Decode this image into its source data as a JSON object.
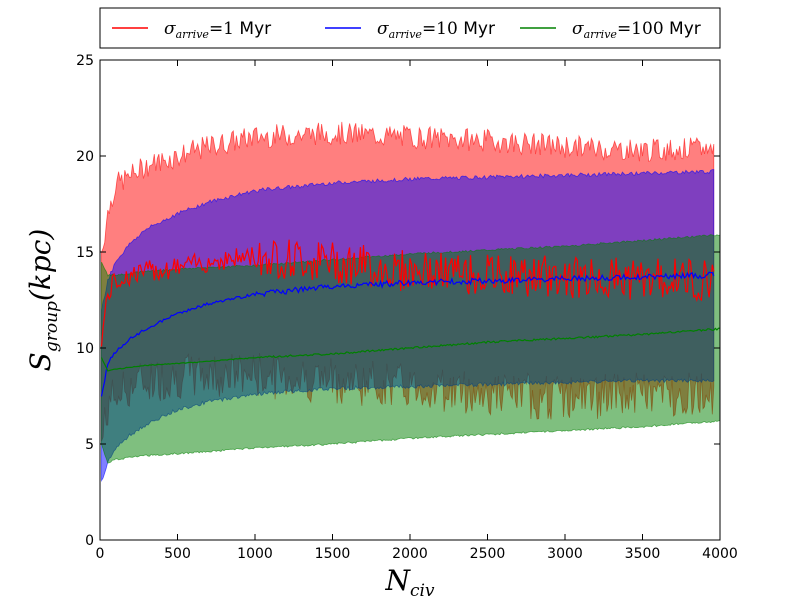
{
  "chart_data": {
    "type": "area",
    "xlabel": "N_civ",
    "ylabel": "S_group(kpc)",
    "xlim": [
      0,
      4000
    ],
    "ylim": [
      0,
      25
    ],
    "xticks": [
      0,
      500,
      1000,
      1500,
      2000,
      2500,
      3000,
      3500,
      4000
    ],
    "yticks": [
      0,
      5,
      10,
      15,
      20,
      25
    ],
    "grid": false,
    "legend_position": "top",
    "legend_entries": [
      {
        "symbol": "σ",
        "subscript": "arrive",
        "eq": "=1",
        "unit": " Myr",
        "color": "#ff0000"
      },
      {
        "symbol": "σ",
        "subscript": "arrive",
        "eq": "=10",
        "unit": " Myr",
        "color": "#0000ff"
      },
      {
        "symbol": "σ",
        "subscript": "arrive",
        "eq": "=100",
        "unit": " Myr",
        "color": "#008000"
      }
    ],
    "series": [
      {
        "name": "σ_arrive=1 Myr",
        "color": "#ff0000",
        "x": [
          10,
          50,
          100,
          200,
          300,
          500,
          700,
          1000,
          1500,
          2000,
          2500,
          3000,
          3500,
          3960
        ],
        "mean": [
          10.5,
          12.8,
          13.5,
          13.8,
          14.0,
          14.2,
          14.5,
          14.8,
          14.5,
          14.0,
          13.8,
          13.7,
          13.6,
          13.6
        ],
        "upper": [
          15.0,
          17.0,
          18.5,
          19.0,
          19.5,
          20.0,
          20.5,
          21.0,
          21.2,
          21.0,
          20.8,
          20.5,
          20.3,
          20.4
        ],
        "lower": [
          5.0,
          7.0,
          7.5,
          8.0,
          8.3,
          8.5,
          8.6,
          8.6,
          8.3,
          8.0,
          7.6,
          7.4,
          7.6,
          7.7
        ]
      },
      {
        "name": "σ_arrive=10 Myr",
        "color": "#0000ff",
        "x": [
          10,
          50,
          100,
          200,
          300,
          500,
          700,
          1000,
          1500,
          2000,
          2500,
          3000,
          3500,
          3960
        ],
        "mean": [
          7.5,
          9.2,
          9.8,
          10.5,
          11.0,
          11.8,
          12.3,
          12.8,
          13.2,
          13.4,
          13.5,
          13.6,
          13.7,
          13.8
        ],
        "upper": [
          12.0,
          13.5,
          14.5,
          15.5,
          16.2,
          17.0,
          17.6,
          18.2,
          18.6,
          18.8,
          18.9,
          19.0,
          19.1,
          19.2
        ],
        "lower": [
          3.0,
          4.0,
          4.8,
          5.5,
          6.0,
          6.8,
          7.2,
          7.6,
          7.9,
          8.0,
          8.1,
          8.2,
          8.3,
          8.3
        ]
      },
      {
        "name": "σ_arrive=100 Myr",
        "color": "#008000",
        "x": [
          10,
          50,
          100,
          200,
          300,
          500,
          700,
          1000,
          1500,
          2000,
          2500,
          3000,
          3500,
          4000
        ],
        "mean": [
          9.5,
          8.8,
          8.9,
          9.0,
          9.1,
          9.2,
          9.3,
          9.5,
          9.7,
          10.0,
          10.3,
          10.5,
          10.7,
          11.0
        ],
        "upper": [
          14.5,
          13.8,
          13.8,
          13.9,
          14.0,
          14.1,
          14.2,
          14.3,
          14.6,
          14.9,
          15.1,
          15.3,
          15.6,
          15.9
        ],
        "lower": [
          5.0,
          4.0,
          4.2,
          4.3,
          4.4,
          4.5,
          4.6,
          4.8,
          5.0,
          5.3,
          5.5,
          5.7,
          5.9,
          6.2
        ]
      }
    ]
  }
}
